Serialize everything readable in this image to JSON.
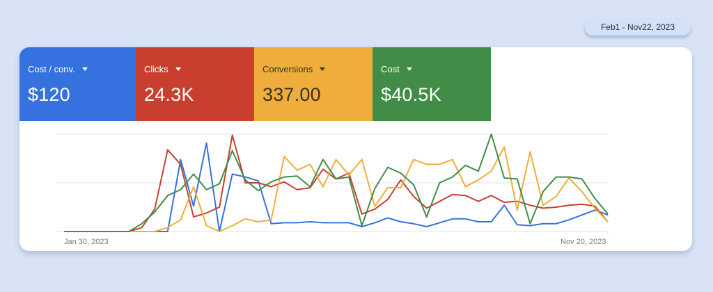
{
  "date_range": {
    "label": "Feb1 - Nov22, 2023"
  },
  "metrics": [
    {
      "label": "Cost / conv.",
      "value": "$120",
      "color": "#3572e0",
      "text": "light"
    },
    {
      "label": "Clicks",
      "value": "24.3K",
      "color": "#c83f30",
      "text": "light"
    },
    {
      "label": "Conversions",
      "value": "337.00",
      "color": "#efad3b",
      "text": "dark"
    },
    {
      "label": "Cost",
      "value": "$40.5K",
      "color": "#418d47",
      "text": "light"
    }
  ],
  "chart_data": {
    "type": "line",
    "title": "",
    "xlabel": "",
    "ylabel": "",
    "x_start_label": "Jan 30, 2023",
    "x_end_label": "Nov 20, 2023",
    "grid": true,
    "ylim": [
      0,
      100
    ],
    "legend": "metric tiles above chart",
    "x": [
      0,
      1,
      2,
      3,
      4,
      5,
      6,
      7,
      8,
      9,
      10,
      11,
      12,
      13,
      14,
      15,
      16,
      17,
      18,
      19,
      20,
      21,
      22,
      23,
      24,
      25,
      26,
      27,
      28,
      29,
      30,
      31,
      32,
      33,
      34,
      35,
      36,
      37,
      38,
      39,
      40,
      41,
      42
    ],
    "series": [
      {
        "name": "Cost / conv.",
        "color": "#3572e0",
        "values": [
          0,
          0,
          0,
          0,
          0,
          0,
          0,
          0,
          0,
          74,
          26,
          91,
          0,
          59,
          56,
          52,
          8,
          9,
          9,
          10,
          9,
          9,
          9,
          5,
          9,
          14,
          10,
          8,
          5,
          9,
          13,
          13,
          10,
          10,
          27,
          7,
          6,
          8,
          8,
          12,
          17,
          22,
          17
        ]
      },
      {
        "name": "Clicks",
        "color": "#c83f30",
        "values": [
          0,
          0,
          0,
          0,
          0,
          0,
          4,
          23,
          84,
          69,
          15,
          19,
          25,
          99,
          50,
          50,
          46,
          51,
          43,
          45,
          64,
          54,
          60,
          18,
          23,
          33,
          53,
          36,
          24,
          31,
          38,
          37,
          31,
          37,
          30,
          31,
          27,
          24,
          25,
          27,
          28,
          26,
          10
        ]
      },
      {
        "name": "Conversions",
        "color": "#efad3b",
        "values": [
          0,
          0,
          0,
          0,
          0,
          0,
          0,
          0,
          4,
          12,
          46,
          6,
          0,
          6,
          13,
          10,
          12,
          77,
          63,
          69,
          46,
          74,
          58,
          74,
          26,
          45,
          45,
          74,
          69,
          69,
          74,
          46,
          53,
          62,
          87,
          22,
          82,
          27,
          36,
          55,
          41,
          24,
          10
        ]
      },
      {
        "name": "Cost",
        "color": "#418d47",
        "values": [
          0,
          0,
          0,
          0,
          0,
          0,
          8,
          20,
          37,
          43,
          59,
          43,
          49,
          83,
          53,
          42,
          51,
          56,
          57,
          46,
          74,
          54,
          56,
          6,
          44,
          66,
          60,
          48,
          15,
          50,
          56,
          68,
          62,
          100,
          55,
          54,
          8,
          41,
          56,
          56,
          54,
          34,
          18
        ]
      }
    ],
    "y_gridlines": [
      0,
      50,
      100
    ]
  }
}
